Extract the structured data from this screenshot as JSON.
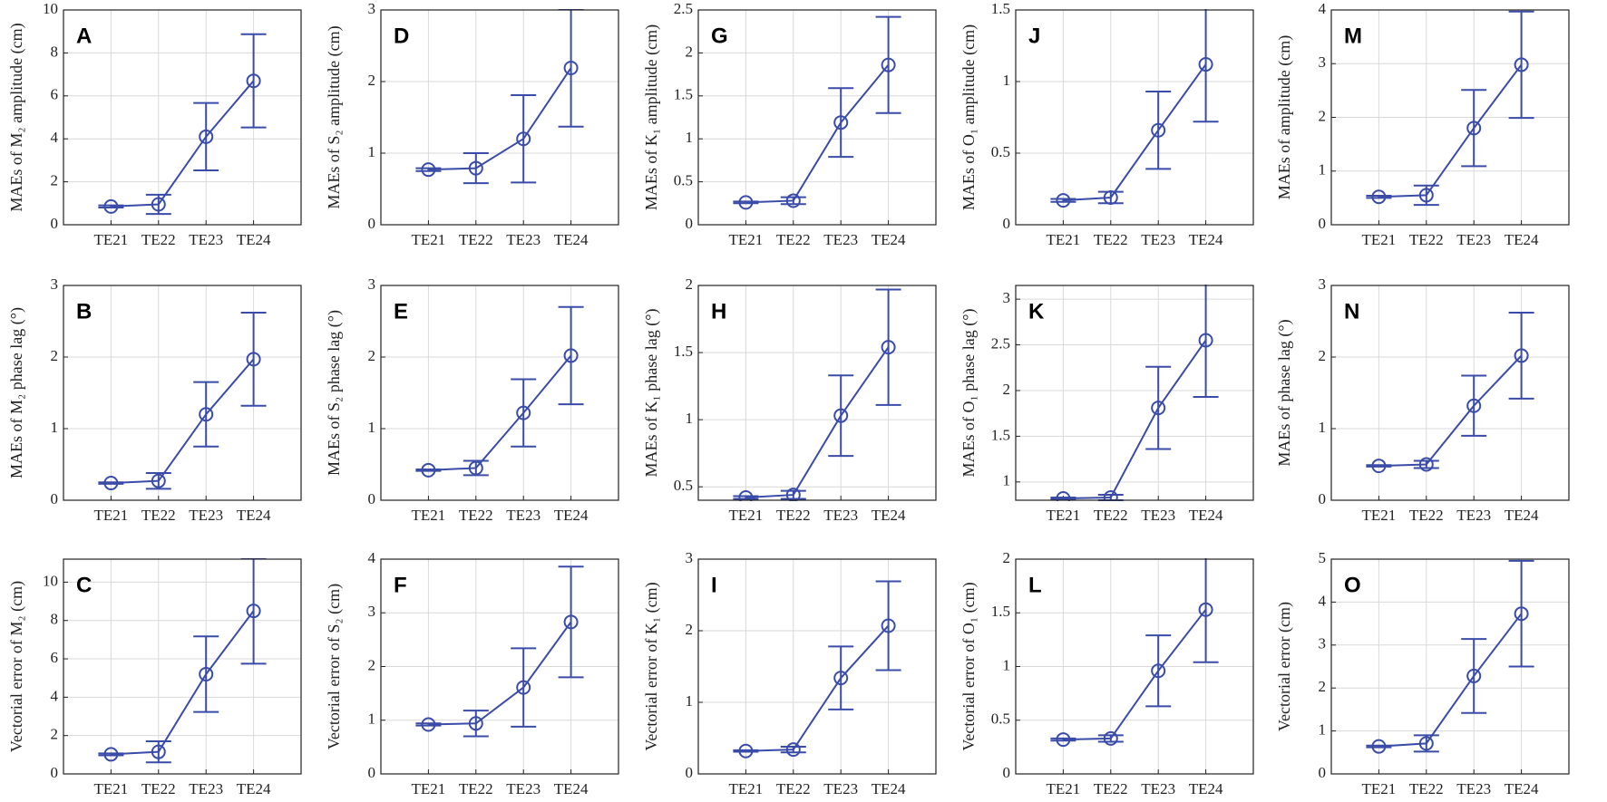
{
  "chart_data": [
    {
      "type": "errorbar",
      "annotation": "A",
      "ylabel": "MAEs of M₂ amplitude (cm)",
      "categories": [
        "TE21",
        "TE22",
        "TE23",
        "TE24"
      ],
      "values": [
        0.85,
        0.95,
        4.1,
        6.7
      ],
      "errors": [
        0.05,
        0.45,
        1.57,
        2.17
      ],
      "ylim": [
        0,
        10
      ],
      "yticks": [
        0,
        2,
        4,
        6,
        8,
        10
      ],
      "color": "#3a4ca8",
      "grid": true
    },
    {
      "type": "errorbar",
      "annotation": "D",
      "ylabel": "MAEs of S₂ amplitude (cm)",
      "categories": [
        "TE21",
        "TE22",
        "TE23",
        "TE24"
      ],
      "values": [
        0.77,
        0.79,
        1.2,
        2.19
      ],
      "errors": [
        0.02,
        0.21,
        0.61,
        0.82
      ],
      "ylim": [
        0,
        3
      ],
      "yticks": [
        0,
        1,
        2,
        3
      ],
      "color": "#3a4ca8",
      "grid": true
    },
    {
      "type": "errorbar",
      "annotation": "G",
      "ylabel": "MAEs of K₁ amplitude (cm)",
      "categories": [
        "TE21",
        "TE22",
        "TE23",
        "TE24"
      ],
      "values": [
        0.26,
        0.28,
        1.19,
        1.86
      ],
      "errors": [
        0.01,
        0.04,
        0.4,
        0.56
      ],
      "ylim": [
        0,
        2.5
      ],
      "yticks": [
        0,
        0.5,
        1,
        1.5,
        2,
        2.5
      ],
      "color": "#3a4ca8",
      "grid": true
    },
    {
      "type": "errorbar",
      "annotation": "J",
      "ylabel": "MAEs of O₁ amplitude (cm)",
      "categories": [
        "TE21",
        "TE22",
        "TE23",
        "TE24"
      ],
      "values": [
        0.17,
        0.19,
        0.66,
        1.12
      ],
      "errors": [
        0.01,
        0.04,
        0.27,
        0.4
      ],
      "ylim": [
        0,
        1.5
      ],
      "yticks": [
        0,
        0.5,
        1,
        1.5
      ],
      "color": "#3a4ca8",
      "grid": true
    },
    {
      "type": "errorbar",
      "annotation": "M",
      "ylabel": "MAEs of amplitude (cm)",
      "categories": [
        "TE21",
        "TE22",
        "TE23",
        "TE24"
      ],
      "values": [
        0.52,
        0.55,
        1.8,
        2.98
      ],
      "errors": [
        0.02,
        0.18,
        0.71,
        0.99
      ],
      "ylim": [
        0,
        4
      ],
      "yticks": [
        0,
        1,
        2,
        3,
        4
      ],
      "color": "#3a4ca8",
      "grid": true
    },
    {
      "type": "errorbar",
      "annotation": "B",
      "ylabel": "MAEs of M₂ phase lag (°)",
      "categories": [
        "TE21",
        "TE22",
        "TE23",
        "TE24"
      ],
      "values": [
        0.24,
        0.27,
        1.2,
        1.97
      ],
      "errors": [
        0.01,
        0.11,
        0.45,
        0.65
      ],
      "ylim": [
        0,
        3
      ],
      "yticks": [
        0,
        1,
        2,
        3
      ],
      "color": "#3a4ca8",
      "grid": true
    },
    {
      "type": "errorbar",
      "annotation": "E",
      "ylabel": "MAEs of S₂ phase lag (°)",
      "categories": [
        "TE21",
        "TE22",
        "TE23",
        "TE24"
      ],
      "values": [
        0.42,
        0.45,
        1.22,
        2.02
      ],
      "errors": [
        0.01,
        0.1,
        0.47,
        0.68
      ],
      "ylim": [
        0,
        3
      ],
      "yticks": [
        0,
        1,
        2,
        3
      ],
      "color": "#3a4ca8",
      "grid": true
    },
    {
      "type": "errorbar",
      "annotation": "H",
      "ylabel": "MAEs of K₁ phase lag (°)",
      "categories": [
        "TE21",
        "TE22",
        "TE23",
        "TE24"
      ],
      "values": [
        0.42,
        0.44,
        1.03,
        1.54
      ],
      "errors": [
        0.01,
        0.03,
        0.3,
        0.43
      ],
      "ylim": [
        0.4,
        2
      ],
      "yticks": [
        0.5,
        1,
        1.5,
        2
      ],
      "color": "#3a4ca8",
      "grid": true
    },
    {
      "type": "errorbar",
      "annotation": "K",
      "ylabel": "MAEs of O₁ phase lag (°)",
      "categories": [
        "TE21",
        "TE22",
        "TE23",
        "TE24"
      ],
      "values": [
        0.82,
        0.83,
        1.81,
        2.55
      ],
      "errors": [
        0.01,
        0.03,
        0.45,
        0.62
      ],
      "ylim": [
        0.8,
        3.15
      ],
      "yticks": [
        1,
        1.5,
        2,
        2.5,
        3
      ],
      "color": "#3a4ca8",
      "grid": true
    },
    {
      "type": "errorbar",
      "annotation": "N",
      "ylabel": "MAEs of phase lag (°)",
      "categories": [
        "TE21",
        "TE22",
        "TE23",
        "TE24"
      ],
      "values": [
        0.48,
        0.5,
        1.32,
        2.02
      ],
      "errors": [
        0.01,
        0.05,
        0.42,
        0.6
      ],
      "ylim": [
        0,
        3
      ],
      "yticks": [
        0,
        1,
        2,
        3
      ],
      "color": "#3a4ca8",
      "grid": true
    },
    {
      "type": "errorbar",
      "annotation": "C",
      "ylabel": "Vectorial error of M₂ (cm)",
      "categories": [
        "TE21",
        "TE22",
        "TE23",
        "TE24"
      ],
      "values": [
        1.02,
        1.15,
        5.2,
        8.5
      ],
      "errors": [
        0.05,
        0.55,
        1.97,
        2.75
      ],
      "ylim": [
        0,
        11.2
      ],
      "yticks": [
        0,
        2,
        4,
        6,
        8,
        10
      ],
      "color": "#3a4ca8",
      "grid": true
    },
    {
      "type": "errorbar",
      "annotation": "F",
      "ylabel": "Vectorial error of S₂ (cm)",
      "categories": [
        "TE21",
        "TE22",
        "TE23",
        "TE24"
      ],
      "values": [
        0.92,
        0.94,
        1.61,
        2.83
      ],
      "errors": [
        0.02,
        0.24,
        0.73,
        1.03
      ],
      "ylim": [
        0,
        4
      ],
      "yticks": [
        0,
        1,
        2,
        3,
        4
      ],
      "color": "#3a4ca8",
      "grid": true
    },
    {
      "type": "errorbar",
      "annotation": "I",
      "ylabel": "Vectorial error of K₁ (cm)",
      "categories": [
        "TE21",
        "TE22",
        "TE23",
        "TE24"
      ],
      "values": [
        0.32,
        0.34,
        1.34,
        2.07
      ],
      "errors": [
        0.01,
        0.04,
        0.44,
        0.62
      ],
      "ylim": [
        0,
        3
      ],
      "yticks": [
        0,
        1,
        2,
        3
      ],
      "color": "#3a4ca8",
      "grid": true
    },
    {
      "type": "errorbar",
      "annotation": "L",
      "ylabel": "Vectorial error of O₁ (cm)",
      "categories": [
        "TE21",
        "TE22",
        "TE23",
        "TE24"
      ],
      "values": [
        0.32,
        0.33,
        0.96,
        1.53
      ],
      "errors": [
        0.01,
        0.03,
        0.33,
        0.49
      ],
      "ylim": [
        0,
        2
      ],
      "yticks": [
        0,
        0.5,
        1,
        1.5,
        2
      ],
      "color": "#3a4ca8",
      "grid": true
    },
    {
      "type": "errorbar",
      "annotation": "O",
      "ylabel": "Vectorial error (cm)",
      "categories": [
        "TE21",
        "TE22",
        "TE23",
        "TE24"
      ],
      "values": [
        0.64,
        0.71,
        2.28,
        3.73
      ],
      "errors": [
        0.02,
        0.19,
        0.86,
        1.23
      ],
      "ylim": [
        0,
        5
      ],
      "yticks": [
        0,
        1,
        2,
        3,
        4,
        5
      ],
      "color": "#3a4ca8",
      "grid": true
    }
  ]
}
